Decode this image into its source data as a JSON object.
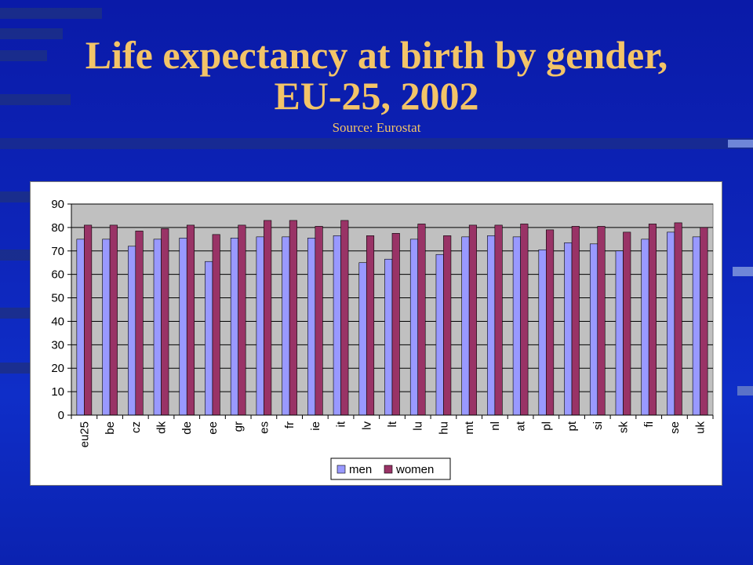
{
  "slide": {
    "title_line1": "Life expectancy at birth by gender,",
    "title_line2": "EU-25, 2002",
    "subtitle": "Source: Eurostat"
  },
  "colors": {
    "background": "#0d24b8",
    "title": "#f3c468",
    "men": "#9999ff",
    "women": "#993366",
    "plot_area": "#c0c0c0"
  },
  "chart_data": {
    "type": "bar",
    "categories": [
      "eu25",
      "be",
      "cz",
      "dk",
      "de",
      "ee",
      "gr",
      "es",
      "fr",
      "ie",
      "it",
      "lv",
      "lt",
      "lu",
      "hu",
      "mt",
      "nl",
      "at",
      "pl",
      "pt",
      "si",
      "sk",
      "fi",
      "se",
      "uk"
    ],
    "series": [
      {
        "name": "men",
        "values": [
          75.0,
          75.0,
          72.0,
          75.0,
          75.5,
          65.5,
          75.5,
          76.0,
          76.0,
          75.5,
          76.5,
          65.0,
          66.5,
          75.0,
          68.5,
          76.0,
          76.5,
          76.0,
          70.5,
          73.5,
          73.0,
          70.0,
          75.0,
          78.0,
          76.0
        ]
      },
      {
        "name": "women",
        "values": [
          81.0,
          81.0,
          78.5,
          79.5,
          81.0,
          77.0,
          81.0,
          83.0,
          83.0,
          80.5,
          83.0,
          76.5,
          77.5,
          81.5,
          76.5,
          81.0,
          81.0,
          81.5,
          79.0,
          80.5,
          80.5,
          78.0,
          81.5,
          82.0,
          80.0
        ]
      }
    ],
    "yticks": [
      0,
      10,
      20,
      30,
      40,
      50,
      60,
      70,
      80,
      90
    ],
    "ylim": [
      0,
      90
    ],
    "grid": true,
    "legend_position": "bottom"
  }
}
